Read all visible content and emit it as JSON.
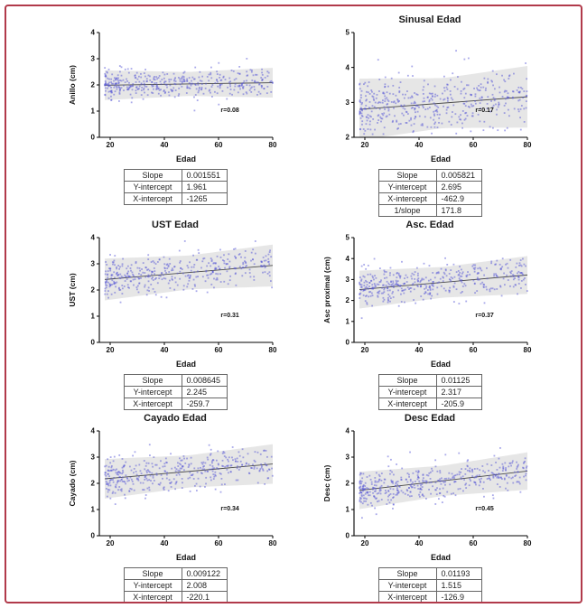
{
  "frame": {
    "border_color": "#b13a4a",
    "background": "#ffffff"
  },
  "style": {
    "point_color": "#5353d6",
    "band_color": "#dcdcdc",
    "line_color": "#4a4a4a",
    "axis_color": "#000000"
  },
  "chart_data": [
    {
      "type": "scatter",
      "title": "",
      "xlabel": "Edad",
      "ylabel": "Anillo (cm)",
      "r_label": "r=0.08",
      "xlim": [
        16,
        80
      ],
      "ylim": [
        0,
        4
      ],
      "xticks": [
        20,
        40,
        60,
        80
      ],
      "yticks": [
        0,
        1,
        2,
        3,
        4
      ],
      "regression": {
        "slope": 0.001551,
        "y_intercept": 1.961,
        "x_intercept": -1265,
        "r": 0.08
      },
      "scatter_style": {
        "n": 420,
        "sd": 0.27,
        "x_min": 18,
        "x_max": 80,
        "seed": 11
      },
      "stats_table": [
        {
          "label": "Slope",
          "value": "0.001551"
        },
        {
          "label": "Y-intercept",
          "value": "1.961"
        },
        {
          "label": "X-intercept",
          "value": "-1265"
        }
      ]
    },
    {
      "type": "scatter",
      "title": "Sinusal Edad",
      "xlabel": "Edad",
      "ylabel": "",
      "r_label": "r=0.17",
      "xlim": [
        16,
        80
      ],
      "ylim": [
        2,
        5
      ],
      "xticks": [
        20,
        40,
        60,
        80
      ],
      "yticks": [
        2,
        3,
        4,
        5
      ],
      "regression": {
        "slope": 0.005821,
        "y_intercept": 2.695,
        "x_intercept": -462.9,
        "one_over_slope": 171.8,
        "r": 0.17
      },
      "scatter_style": {
        "n": 470,
        "sd": 0.42,
        "x_min": 18,
        "x_max": 80,
        "seed": 22
      },
      "stats_table": [
        {
          "label": "Slope",
          "value": "0.005821"
        },
        {
          "label": "Y-intercept",
          "value": "2.695"
        },
        {
          "label": "X-intercept",
          "value": "-462.9"
        },
        {
          "label": "1/slope",
          "value": "171.8"
        }
      ]
    },
    {
      "type": "scatter",
      "title": "UST Edad",
      "xlabel": "Edad",
      "ylabel": "UST (cm)",
      "r_label": "r=0.31",
      "xlim": [
        16,
        80
      ],
      "ylim": [
        0,
        4
      ],
      "xticks": [
        20,
        40,
        60,
        80
      ],
      "yticks": [
        0,
        1,
        2,
        3,
        4
      ],
      "regression": {
        "slope": 0.008645,
        "y_intercept": 2.245,
        "x_intercept": -259.7,
        "r": 0.31
      },
      "scatter_style": {
        "n": 400,
        "sd": 0.38,
        "x_min": 18,
        "x_max": 80,
        "seed": 33
      },
      "stats_table": [
        {
          "label": "Slope",
          "value": "0.008645"
        },
        {
          "label": "Y-intercept",
          "value": "2.245"
        },
        {
          "label": "X-intercept",
          "value": "-259.7"
        }
      ]
    },
    {
      "type": "scatter",
      "title": "Asc. Edad",
      "xlabel": "Edad",
      "ylabel": "Asc proximal (cm)",
      "r_label": "r=0.37",
      "xlim": [
        16,
        80
      ],
      "ylim": [
        0,
        5
      ],
      "xticks": [
        20,
        40,
        60,
        80
      ],
      "yticks": [
        0,
        1,
        2,
        3,
        4,
        5
      ],
      "regression": {
        "slope": 0.01125,
        "y_intercept": 2.317,
        "x_intercept": -205.9,
        "r": 0.37
      },
      "scatter_style": {
        "n": 420,
        "sd": 0.43,
        "x_min": 18,
        "x_max": 80,
        "seed": 44
      },
      "stats_table": [
        {
          "label": "Slope",
          "value": "0.01125"
        },
        {
          "label": "Y-intercept",
          "value": "2.317"
        },
        {
          "label": "X-intercept",
          "value": "-205.9"
        }
      ]
    },
    {
      "type": "scatter",
      "title": "Cayado Edad",
      "xlabel": "Edad",
      "ylabel": "Cayado (cm)",
      "r_label": "r=0.34",
      "xlim": [
        16,
        80
      ],
      "ylim": [
        0,
        4
      ],
      "xticks": [
        20,
        40,
        60,
        80
      ],
      "yticks": [
        0,
        1,
        2,
        3,
        4
      ],
      "regression": {
        "slope": 0.009122,
        "y_intercept": 2.008,
        "x_intercept": -220.1,
        "r": 0.34
      },
      "scatter_style": {
        "n": 390,
        "sd": 0.36,
        "x_min": 18,
        "x_max": 80,
        "seed": 55
      },
      "stats_table": [
        {
          "label": "Slope",
          "value": "0.009122"
        },
        {
          "label": "Y-intercept",
          "value": "2.008"
        },
        {
          "label": "X-intercept",
          "value": "-220.1"
        }
      ]
    },
    {
      "type": "scatter",
      "title": "Desc Edad",
      "xlabel": "Edad",
      "ylabel": "Desc (cm)",
      "r_label": "r=0.45",
      "xlim": [
        16,
        80
      ],
      "ylim": [
        0,
        4
      ],
      "xticks": [
        20,
        40,
        60,
        80
      ],
      "yticks": [
        0,
        1,
        2,
        3,
        4
      ],
      "regression": {
        "slope": 0.01193,
        "y_intercept": 1.515,
        "x_intercept": -126.9,
        "r": 0.45
      },
      "scatter_style": {
        "n": 440,
        "sd": 0.34,
        "x_min": 18,
        "x_max": 80,
        "seed": 66
      },
      "stats_table": [
        {
          "label": "Slope",
          "value": "0.01193"
        },
        {
          "label": "Y-intercept",
          "value": "1.515"
        },
        {
          "label": "X-intercept",
          "value": "-126.9"
        }
      ]
    }
  ]
}
